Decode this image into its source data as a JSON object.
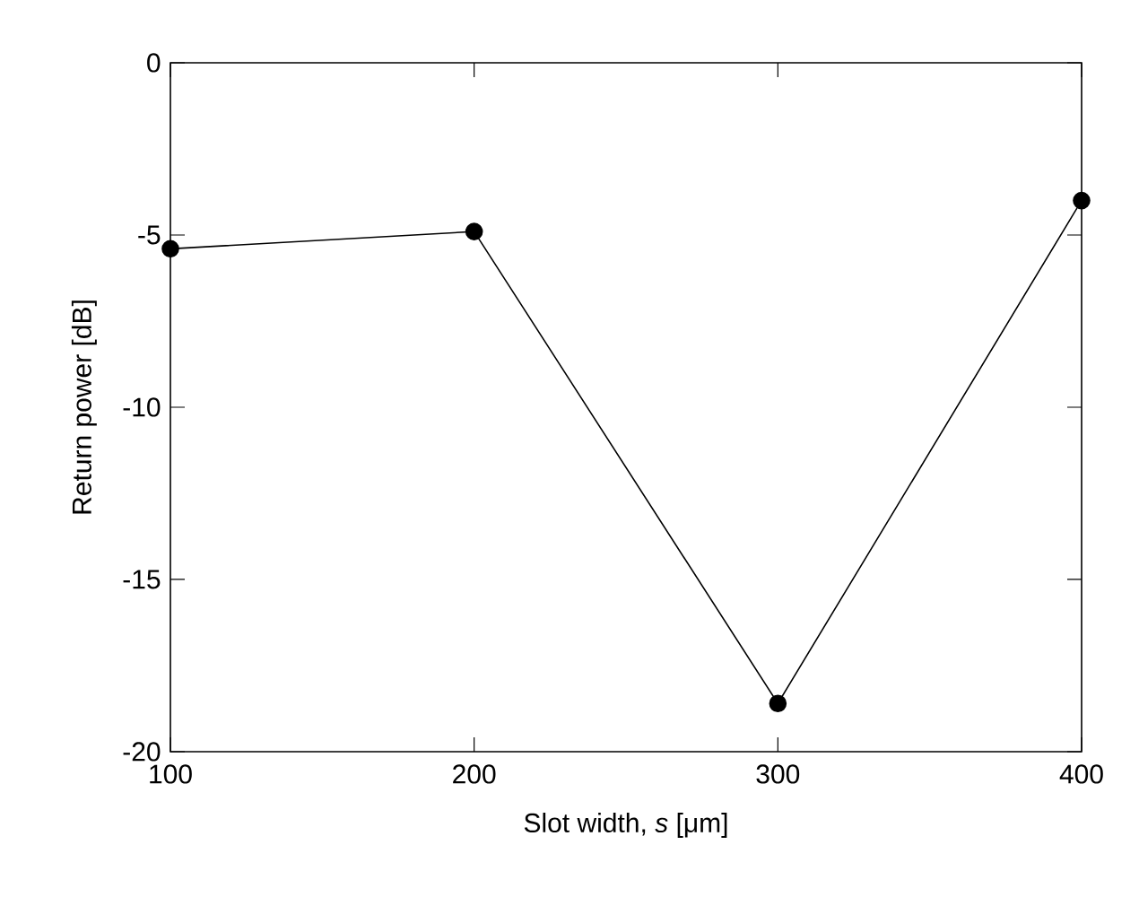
{
  "chart_data": {
    "type": "line",
    "xlabel": "Slot width, *s* [μm]",
    "ylabel": "Return power [dB]",
    "x": [
      100,
      200,
      300,
      400
    ],
    "series": [
      {
        "color": "#000000",
        "values": [
          -5.4,
          -4.9,
          -18.6,
          -4.0
        ]
      }
    ],
    "xlim": [
      100,
      400
    ],
    "ylim": [
      -20,
      0
    ],
    "xticks": [
      100,
      200,
      300,
      400
    ],
    "yticks": [
      -20,
      -15,
      -10,
      -5,
      0
    ],
    "marker": "circle",
    "line_style": "solid"
  }
}
